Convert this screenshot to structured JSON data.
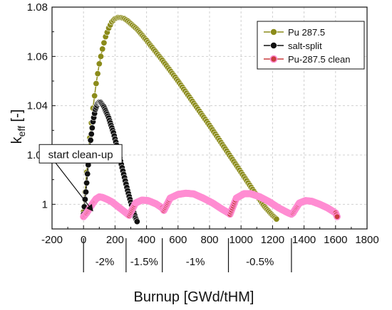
{
  "chart_data": {
    "type": "line",
    "title": "",
    "xlabel": "Burnup [GWd/tHM]",
    "ylabel_main": "k",
    "ylabel_sub": "eff",
    "ylabel_unit": " [-]",
    "xlim": [
      -200,
      1800
    ],
    "ylim": [
      0.99,
      1.08
    ],
    "x_ticks": [
      -200,
      0,
      200,
      400,
      600,
      800,
      1000,
      1200,
      1400,
      1600,
      1800
    ],
    "y_ticks": [
      1,
      1.02,
      1.04,
      1.06,
      1.08
    ],
    "grid": true,
    "legend_position": "top-right",
    "series": [
      {
        "name": "Pu 287.5",
        "color": "#8b8b1a",
        "x": [
          0,
          20,
          40,
          60,
          80,
          100,
          120,
          140,
          160,
          180,
          200,
          220,
          240,
          260,
          280,
          300,
          340,
          400,
          500,
          600,
          700,
          800,
          900,
          1000,
          1100,
          1150,
          1200,
          1225
        ],
        "y": [
          0.997,
          1.013,
          1.027,
          1.039,
          1.049,
          1.057,
          1.063,
          1.068,
          1.0715,
          1.074,
          1.0753,
          1.0758,
          1.0757,
          1.0753,
          1.0744,
          1.0733,
          1.071,
          1.0665,
          1.0585,
          1.05,
          1.041,
          1.032,
          1.0225,
          1.013,
          1.0035,
          0.999,
          0.9955,
          0.994
        ]
      },
      {
        "name": "salt-split",
        "color": "#111111",
        "x": [
          0,
          15,
          30,
          45,
          60,
          75,
          90,
          100,
          110,
          130,
          160,
          190,
          220,
          250,
          280,
          310,
          330,
          340
        ],
        "y": [
          0.996,
          1.005,
          1.016,
          1.026,
          1.0335,
          1.0385,
          1.041,
          1.0415,
          1.0413,
          1.0395,
          1.035,
          1.029,
          1.0215,
          1.0135,
          1.0055,
          0.9985,
          0.9945,
          0.993
        ]
      },
      {
        "name": "Pu-287.5 clean",
        "color": "#c83c3c",
        "edge_color": "#ff8cd2",
        "x": [
          0,
          20,
          40,
          60,
          80,
          100,
          120,
          150,
          180,
          210,
          240,
          270,
          290,
          330,
          370,
          410,
          460,
          500,
          510,
          550,
          600,
          650,
          700,
          760,
          820,
          880,
          920,
          930,
          970,
          1020,
          1060,
          1120,
          1180,
          1240,
          1300,
          1320,
          1330,
          1370,
          1410,
          1450,
          1500,
          1550,
          1600,
          1610
        ],
        "y": [
          0.995,
          0.9965,
          0.9985,
          1.0005,
          1.0022,
          1.003,
          1.0028,
          1.002,
          1.001,
          0.9995,
          0.998,
          0.9965,
          0.9955,
          1.0005,
          1.0017,
          1.0015,
          1.0002,
          0.9985,
          0.9975,
          1.0025,
          1.004,
          1.0045,
          1.0042,
          1.0025,
          1.0005,
          0.998,
          0.9965,
          0.996,
          1.0025,
          1.0043,
          1.0043,
          1.003,
          1.001,
          0.9985,
          0.9965,
          0.996,
          0.9965,
          1.0005,
          1.0015,
          1.0012,
          1.0,
          0.9985,
          0.9965,
          0.995
        ]
      }
    ],
    "annotations": [
      {
        "text": "start clean-up",
        "x": 330,
        "y": 1.0205,
        "arrow_to_x": 40,
        "arrow_to_y": 0.9965
      }
    ],
    "regions": [
      {
        "label": "-2%",
        "x_start": 0,
        "x_end": 270
      },
      {
        "label": "-1.5%",
        "x_start": 270,
        "x_end": 500
      },
      {
        "label": "-1%",
        "x_start": 500,
        "x_end": 920
      },
      {
        "label": "-0.5%",
        "x_start": 920,
        "x_end": 1320
      }
    ]
  }
}
